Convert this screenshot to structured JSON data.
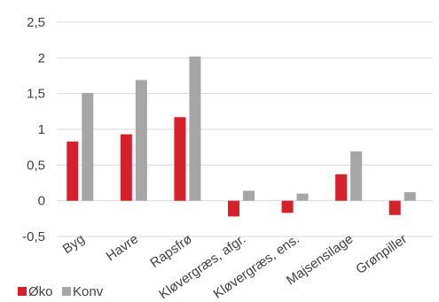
{
  "chart_data": {
    "type": "bar",
    "categories": [
      "Byg",
      "Havre",
      "Rapsfrø",
      "Kløvergræs, afgr.",
      "Kløvergræs, ens.",
      "Majsensilage",
      "Grønpiller"
    ],
    "series": [
      {
        "name": "Øko",
        "values": [
          0.83,
          0.93,
          1.17,
          -0.22,
          -0.17,
          0.37,
          -0.2
        ],
        "color": "#d7202a"
      },
      {
        "name": "Konv",
        "values": [
          1.51,
          1.69,
          2.02,
          0.14,
          0.1,
          0.69,
          0.12
        ],
        "color": "#a6a6a6"
      }
    ],
    "yticks": [
      "2,5",
      "2",
      "1,5",
      "1",
      "0,5",
      "0",
      "-0,5"
    ],
    "ytick_values": [
      2.5,
      2,
      1.5,
      1,
      0.5,
      0,
      -0.5
    ],
    "ylim": [
      -0.5,
      2.5
    ],
    "grid": true,
    "legend_position": "bottom-left"
  }
}
